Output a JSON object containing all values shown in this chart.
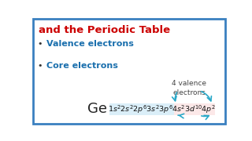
{
  "title_line1": "and the Periodic Table",
  "title_color": "#cc0000",
  "bullet_color": "#1a6fad",
  "bullet1": "Valence electrons",
  "bullet2": "Core electrons",
  "element": "Ge",
  "element_color": "#222222",
  "annotation": "4 valence\nelectrons",
  "annotation_color": "#444444",
  "box_bg": "#daeef8",
  "box_highlight": "#fce8e8",
  "arrow_color": "#29a8c8",
  "bg_color": "#ffffff",
  "border_color": "#3a80c0",
  "config_color": "#111111"
}
